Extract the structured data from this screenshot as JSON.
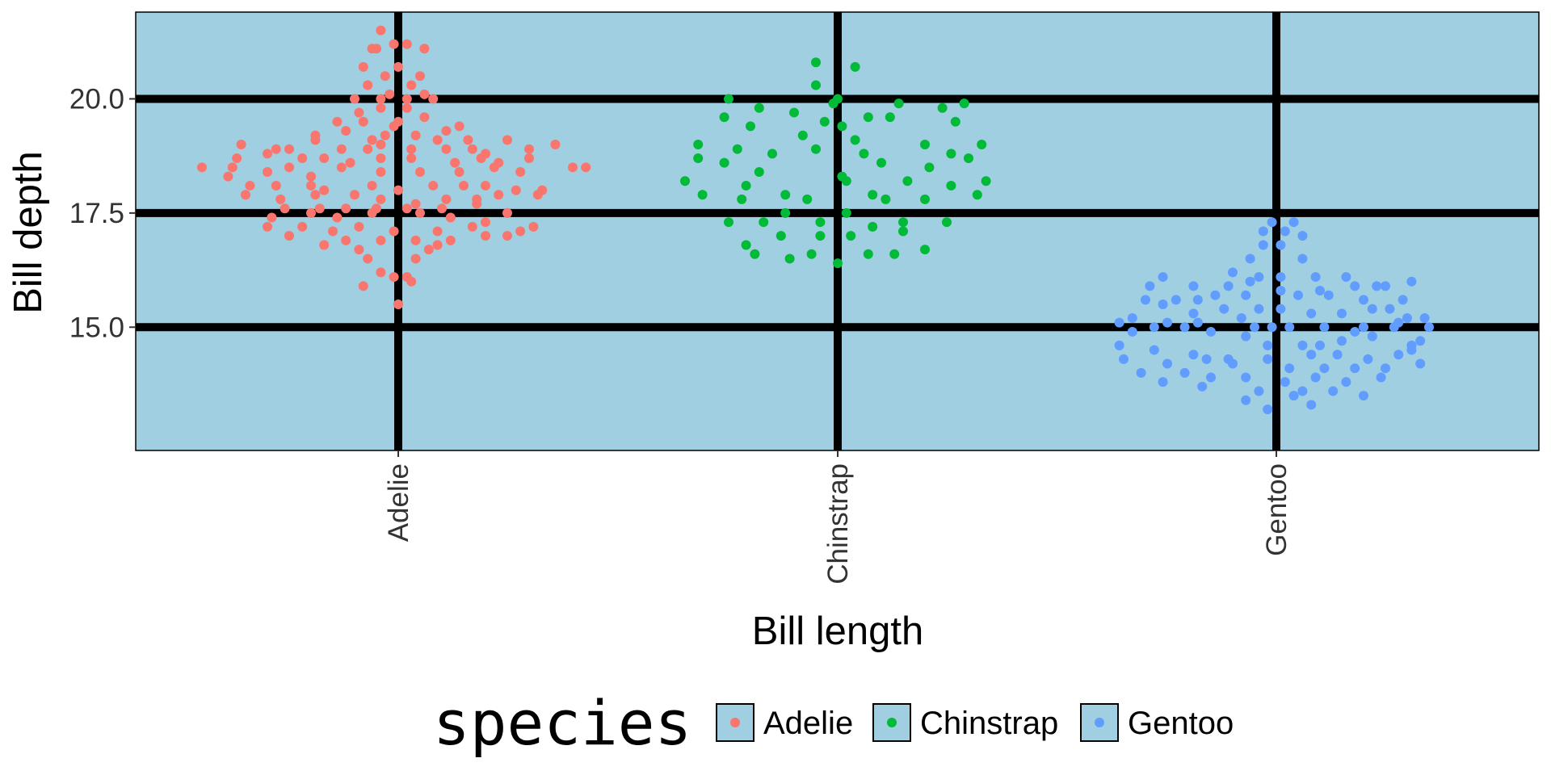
{
  "chart_data": {
    "type": "scatter",
    "xlabel": "Bill length",
    "ylabel": "Bill depth",
    "categories": [
      "Adelie",
      "Chinstrap",
      "Gentoo"
    ],
    "y_ticks": [
      15.0,
      17.5,
      20.0
    ],
    "y_tick_labels": [
      "15.0",
      "17.5",
      "20.0"
    ],
    "ylim": [
      12.3,
      21.9
    ],
    "grid": "major, thick black",
    "panel_background": "#9fcfe0",
    "legend": {
      "title": "species",
      "placement": "bottom",
      "entries": [
        "Adelie",
        "Chinstrap",
        "Gentoo"
      ]
    },
    "series": [
      {
        "name": "Adelie",
        "color": "#f8766d",
        "points": [
          [
            -0.04,
            21.5
          ],
          [
            0.02,
            21.2
          ],
          [
            -0.01,
            21.2
          ],
          [
            -0.06,
            21.1
          ],
          [
            -0.05,
            21.1
          ],
          [
            -0.08,
            20.7
          ],
          [
            0.06,
            21.1
          ],
          [
            0,
            20.7
          ],
          [
            -0.03,
            20.5
          ],
          [
            0.05,
            20.5
          ],
          [
            -0.07,
            20.3
          ],
          [
            0.03,
            20.3
          ],
          [
            -0.1,
            20.0
          ],
          [
            -0.04,
            20.0
          ],
          [
            -0.02,
            20.1
          ],
          [
            0.02,
            20.0
          ],
          [
            0.06,
            20.1
          ],
          [
            0.08,
            20.0
          ],
          [
            -0.09,
            19.7
          ],
          [
            -0.04,
            19.8
          ],
          [
            0.02,
            19.8
          ],
          [
            -0.14,
            19.5
          ],
          [
            -0.08,
            19.5
          ],
          [
            -0.01,
            19.4
          ],
          [
            0,
            19.5
          ],
          [
            0.06,
            19.6
          ],
          [
            0.11,
            19.3
          ],
          [
            0.14,
            19.4
          ],
          [
            -0.19,
            19.2
          ],
          [
            -0.12,
            19.3
          ],
          [
            -0.06,
            19.1
          ],
          [
            -0.03,
            19.2
          ],
          [
            0.04,
            19.2
          ],
          [
            0.09,
            19.1
          ],
          [
            0.16,
            19.1
          ],
          [
            0.25,
            19.1
          ],
          [
            -0.36,
            19.0
          ],
          [
            -0.28,
            18.9
          ],
          [
            -0.25,
            18.9
          ],
          [
            -0.19,
            19.1
          ],
          [
            -0.13,
            18.9
          ],
          [
            -0.07,
            18.9
          ],
          [
            -0.04,
            19.0
          ],
          [
            0.03,
            18.9
          ],
          [
            0.11,
            18.9
          ],
          [
            0.17,
            18.9
          ],
          [
            0.2,
            18.8
          ],
          [
            0.3,
            18.9
          ],
          [
            0.36,
            19.0
          ],
          [
            -0.37,
            18.7
          ],
          [
            -0.3,
            18.8
          ],
          [
            -0.22,
            18.7
          ],
          [
            -0.17,
            18.7
          ],
          [
            -0.11,
            18.6
          ],
          [
            -0.04,
            18.7
          ],
          [
            0.03,
            18.7
          ],
          [
            0.13,
            18.6
          ],
          [
            0.19,
            18.7
          ],
          [
            0.23,
            18.6
          ],
          [
            0.3,
            18.7
          ],
          [
            -0.45,
            18.5
          ],
          [
            -0.38,
            18.5
          ],
          [
            -0.3,
            18.4
          ],
          [
            -0.25,
            18.5
          ],
          [
            -0.2,
            18.3
          ],
          [
            -0.13,
            18.5
          ],
          [
            -0.04,
            18.4
          ],
          [
            0.05,
            18.4
          ],
          [
            0.14,
            18.4
          ],
          [
            0.22,
            18.5
          ],
          [
            0.28,
            18.4
          ],
          [
            0.4,
            18.5
          ],
          [
            0.43,
            18.5
          ],
          [
            -0.39,
            18.3
          ],
          [
            -0.34,
            18.1
          ],
          [
            -0.28,
            18.1
          ],
          [
            -0.2,
            18.1
          ],
          [
            -0.17,
            18.0
          ],
          [
            -0.06,
            18.1
          ],
          [
            0,
            18.0
          ],
          [
            0.08,
            18.1
          ],
          [
            0.15,
            18.1
          ],
          [
            0.2,
            18.1
          ],
          [
            0.27,
            18.0
          ],
          [
            0.33,
            18.0
          ],
          [
            -0.35,
            17.9
          ],
          [
            -0.27,
            17.8
          ],
          [
            -0.19,
            17.9
          ],
          [
            -0.1,
            17.9
          ],
          [
            -0.04,
            17.8
          ],
          [
            0.04,
            17.7
          ],
          [
            0.11,
            17.8
          ],
          [
            0.18,
            17.8
          ],
          [
            0.23,
            17.9
          ],
          [
            0.32,
            17.9
          ],
          [
            -0.26,
            17.6
          ],
          [
            -0.18,
            17.6
          ],
          [
            -0.12,
            17.6
          ],
          [
            -0.05,
            17.6
          ],
          [
            0.02,
            17.6
          ],
          [
            0.1,
            17.6
          ],
          [
            0.18,
            17.7
          ],
          [
            0.25,
            17.5
          ],
          [
            -0.29,
            17.4
          ],
          [
            -0.2,
            17.5
          ],
          [
            -0.14,
            17.4
          ],
          [
            -0.06,
            17.5
          ],
          [
            0.05,
            17.5
          ],
          [
            0.12,
            17.4
          ],
          [
            0.2,
            17.3
          ],
          [
            -0.3,
            17.2
          ],
          [
            -0.22,
            17.2
          ],
          [
            -0.15,
            17.1
          ],
          [
            -0.09,
            17.2
          ],
          [
            -0.01,
            17.1
          ],
          [
            0.09,
            17.1
          ],
          [
            0.17,
            17.2
          ],
          [
            0.2,
            17.0
          ],
          [
            0.25,
            17.0
          ],
          [
            0.28,
            17.1
          ],
          [
            0.31,
            17.2
          ],
          [
            -0.25,
            17.0
          ],
          [
            -0.12,
            16.9
          ],
          [
            -0.04,
            16.9
          ],
          [
            0.04,
            16.9
          ],
          [
            0.12,
            16.9
          ],
          [
            -0.17,
            16.8
          ],
          [
            -0.09,
            16.7
          ],
          [
            0.07,
            16.7
          ],
          [
            0.09,
            16.8
          ],
          [
            -0.07,
            16.5
          ],
          [
            0.04,
            16.5
          ],
          [
            -0.04,
            16.2
          ],
          [
            -0.01,
            16.1
          ],
          [
            0.02,
            16.1
          ],
          [
            0.03,
            16.0
          ],
          [
            -0.08,
            15.9
          ],
          [
            0,
            15.5
          ]
        ]
      },
      {
        "name": "Chinstrap",
        "color": "#00ba38",
        "points": [
          [
            -0.05,
            20.8
          ],
          [
            0.04,
            20.7
          ],
          [
            -0.05,
            20.3
          ],
          [
            -0.25,
            20.0
          ],
          [
            -0.01,
            19.9
          ],
          [
            0,
            20.0
          ],
          [
            0.14,
            19.9
          ],
          [
            0.29,
            19.9
          ],
          [
            -0.18,
            19.8
          ],
          [
            0.24,
            19.8
          ],
          [
            -0.1,
            19.7
          ],
          [
            -0.03,
            19.5
          ],
          [
            0.07,
            19.6
          ],
          [
            0.12,
            19.6
          ],
          [
            0.27,
            19.5
          ],
          [
            -0.26,
            19.6
          ],
          [
            -0.2,
            19.4
          ],
          [
            0.01,
            19.4
          ],
          [
            -0.32,
            19.0
          ],
          [
            -0.23,
            18.9
          ],
          [
            -0.08,
            19.2
          ],
          [
            0.04,
            19.1
          ],
          [
            0.2,
            19.0
          ],
          [
            0.33,
            19.0
          ],
          [
            -0.32,
            18.7
          ],
          [
            -0.15,
            18.8
          ],
          [
            -0.05,
            18.9
          ],
          [
            0.06,
            18.8
          ],
          [
            0.1,
            18.6
          ],
          [
            0.26,
            18.8
          ],
          [
            0.3,
            18.7
          ],
          [
            -0.26,
            18.6
          ],
          [
            -0.18,
            18.4
          ],
          [
            0.21,
            18.5
          ],
          [
            -0.35,
            18.2
          ],
          [
            -0.21,
            18.1
          ],
          [
            0.02,
            18.2
          ],
          [
            0.01,
            18.3
          ],
          [
            0.16,
            18.2
          ],
          [
            0.26,
            18.1
          ],
          [
            0.34,
            18.2
          ],
          [
            -0.31,
            17.9
          ],
          [
            -0.22,
            17.8
          ],
          [
            -0.12,
            17.9
          ],
          [
            -0.07,
            17.8
          ],
          [
            0.08,
            17.9
          ],
          [
            0.11,
            17.8
          ],
          [
            0.2,
            17.8
          ],
          [
            0.32,
            17.9
          ],
          [
            -0.25,
            17.3
          ],
          [
            -0.17,
            17.3
          ],
          [
            -0.12,
            17.5
          ],
          [
            0.02,
            17.5
          ],
          [
            -0.04,
            17.3
          ],
          [
            0.08,
            17.2
          ],
          [
            0.15,
            17.3
          ],
          [
            0.25,
            17.3
          ],
          [
            -0.21,
            16.8
          ],
          [
            -0.13,
            17.0
          ],
          [
            -0.04,
            17.0
          ],
          [
            0.03,
            17.0
          ],
          [
            0.15,
            17.1
          ],
          [
            0.2,
            16.7
          ],
          [
            -0.19,
            16.6
          ],
          [
            -0.11,
            16.5
          ],
          [
            -0.06,
            16.6
          ],
          [
            0,
            16.4
          ],
          [
            0.07,
            16.6
          ],
          [
            0.13,
            16.6
          ]
        ]
      },
      {
        "name": "Gentoo",
        "color": "#619cff",
        "points": [
          [
            -0.01,
            17.3
          ],
          [
            0.04,
            17.3
          ],
          [
            -0.03,
            17.1
          ],
          [
            0.02,
            17.1
          ],
          [
            0.06,
            17.0
          ],
          [
            -0.03,
            16.8
          ],
          [
            0.01,
            16.8
          ],
          [
            -0.06,
            16.5
          ],
          [
            0.06,
            16.5
          ],
          [
            -0.1,
            16.2
          ],
          [
            -0.04,
            16.1
          ],
          [
            0.01,
            16.1
          ],
          [
            0.09,
            16.1
          ],
          [
            0.16,
            16.1
          ],
          [
            0.23,
            15.9
          ],
          [
            -0.26,
            16.1
          ],
          [
            -0.19,
            15.9
          ],
          [
            -0.11,
            15.9
          ],
          [
            -0.06,
            16.0
          ],
          [
            0.1,
            15.8
          ],
          [
            0.18,
            15.9
          ],
          [
            0.25,
            15.9
          ],
          [
            0.31,
            16.0
          ],
          [
            -0.29,
            15.9
          ],
          [
            -0.23,
            15.6
          ],
          [
            -0.18,
            15.6
          ],
          [
            -0.14,
            15.7
          ],
          [
            -0.07,
            15.7
          ],
          [
            0.01,
            15.8
          ],
          [
            0.05,
            15.7
          ],
          [
            0.12,
            15.7
          ],
          [
            0.2,
            15.6
          ],
          [
            0.26,
            15.4
          ],
          [
            0.29,
            15.6
          ],
          [
            -0.3,
            15.6
          ],
          [
            -0.26,
            15.5
          ],
          [
            -0.19,
            15.3
          ],
          [
            -0.12,
            15.4
          ],
          [
            -0.04,
            15.4
          ],
          [
            0.01,
            15.4
          ],
          [
            0.08,
            15.3
          ],
          [
            0.15,
            15.3
          ],
          [
            0.22,
            15.4
          ],
          [
            0.28,
            15.1
          ],
          [
            0.3,
            15.2
          ],
          [
            0.34,
            15.2
          ],
          [
            -0.33,
            15.2
          ],
          [
            -0.25,
            15.1
          ],
          [
            -0.18,
            15.1
          ],
          [
            -0.08,
            15.2
          ],
          [
            -0.01,
            15.0
          ],
          [
            0.03,
            15.0
          ],
          [
            0.11,
            15.0
          ],
          [
            0.18,
            14.9
          ],
          [
            0.2,
            15.0
          ],
          [
            0.27,
            15.0
          ],
          [
            0.35,
            15.0
          ],
          [
            -0.36,
            15.1
          ],
          [
            -0.33,
            14.9
          ],
          [
            -0.28,
            15.0
          ],
          [
            -0.21,
            15.0
          ],
          [
            -0.15,
            14.9
          ],
          [
            -0.07,
            14.8
          ],
          [
            -0.05,
            15.0
          ],
          [
            -0.02,
            14.6
          ],
          [
            0.06,
            14.6
          ],
          [
            0.1,
            14.6
          ],
          [
            0.15,
            14.7
          ],
          [
            0.22,
            14.8
          ],
          [
            0.31,
            14.6
          ],
          [
            0.33,
            14.7
          ],
          [
            -0.36,
            14.6
          ],
          [
            -0.28,
            14.5
          ],
          [
            -0.19,
            14.4
          ],
          [
            -0.11,
            14.3
          ],
          [
            -0.02,
            14.3
          ],
          [
            0.08,
            14.4
          ],
          [
            0.14,
            14.4
          ],
          [
            0.21,
            14.3
          ],
          [
            0.28,
            14.4
          ],
          [
            0.31,
            14.5
          ],
          [
            -0.35,
            14.3
          ],
          [
            -0.25,
            14.2
          ],
          [
            -0.16,
            14.3
          ],
          [
            -0.1,
            14.2
          ],
          [
            0.03,
            14.1
          ],
          [
            0.11,
            14.1
          ],
          [
            0.18,
            14.1
          ],
          [
            0.25,
            14.1
          ],
          [
            0.33,
            14.2
          ],
          [
            -0.31,
            14.0
          ],
          [
            -0.21,
            14.0
          ],
          [
            -0.15,
            13.9
          ],
          [
            -0.07,
            13.9
          ],
          [
            0.02,
            13.8
          ],
          [
            0.09,
            13.9
          ],
          [
            0.16,
            13.8
          ],
          [
            0.24,
            13.9
          ],
          [
            -0.26,
            13.8
          ],
          [
            -0.17,
            13.7
          ],
          [
            -0.04,
            13.6
          ],
          [
            0.06,
            13.6
          ],
          [
            0.13,
            13.6
          ],
          [
            0.2,
            13.5
          ],
          [
            -0.07,
            13.4
          ],
          [
            0.04,
            13.5
          ],
          [
            0.08,
            13.3
          ],
          [
            -0.02,
            13.2
          ]
        ]
      }
    ]
  }
}
